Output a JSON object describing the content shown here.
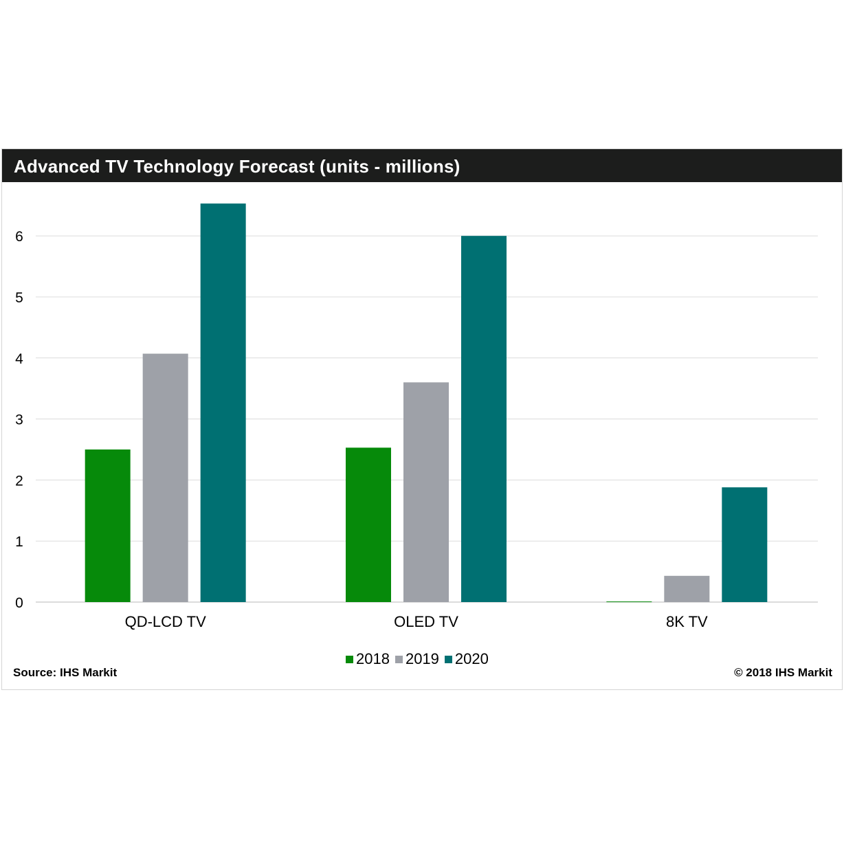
{
  "header": {
    "title": "Advanced TV Technology Forecast (units - millions)"
  },
  "footer": {
    "source": "Source: IHS Markit",
    "copyright": "© 2018 IHS Markit"
  },
  "colors": {
    "series_2018": "#068a0a",
    "series_2019": "#9ea1a8",
    "series_2020": "#007072",
    "grid": "#dcdcdc",
    "title_bar": "#1c1d1c"
  },
  "chart_data": {
    "type": "bar",
    "title": "Advanced TV Technology Forecast (units - millions)",
    "xlabel": "",
    "ylabel": "",
    "categories": [
      "QD-LCD TV",
      "OLED TV",
      "8K TV"
    ],
    "series": [
      {
        "name": "2018",
        "values": [
          2.5,
          2.53,
          0.01
        ]
      },
      {
        "name": "2019",
        "values": [
          4.07,
          3.6,
          0.43
        ]
      },
      {
        "name": "2020",
        "values": [
          6.53,
          6.0,
          1.88
        ]
      }
    ],
    "ylim": [
      0,
      6.5
    ],
    "yticks": [
      "0",
      "1",
      "2",
      "3",
      "4",
      "5",
      "6"
    ],
    "grid": true,
    "legend_position": "bottom-center"
  }
}
